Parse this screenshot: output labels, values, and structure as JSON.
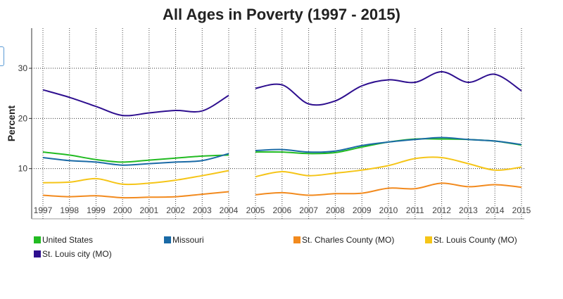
{
  "chart_data": {
    "type": "line",
    "title": "All Ages in Poverty (1997 - 2015)",
    "xlabel": "",
    "ylabel": "Percent",
    "ylim": [
      0,
      38
    ],
    "yticks": [
      10,
      20,
      30
    ],
    "grid": true,
    "legend_position": "bottom",
    "x": [
      "1997",
      "1998",
      "1999",
      "2000",
      "2001",
      "2002",
      "2003",
      "2004",
      "2005",
      "2006",
      "2007",
      "2008",
      "2009",
      "2010",
      "2011",
      "2012",
      "2013",
      "2014",
      "2015"
    ],
    "series": [
      {
        "name": "United States",
        "color": "#22bb22",
        "values": [
          13.3,
          12.7,
          11.8,
          11.3,
          11.7,
          12.1,
          12.5,
          12.7,
          13.3,
          13.3,
          13.0,
          13.2,
          14.3,
          15.3,
          15.9,
          15.9,
          15.8,
          15.5,
          14.7
        ]
      },
      {
        "name": "Missouri",
        "color": "#1a6aa6",
        "values": [
          12.2,
          11.6,
          11.3,
          10.7,
          11.0,
          11.3,
          11.6,
          13.0,
          13.6,
          13.8,
          13.3,
          13.5,
          14.6,
          15.3,
          15.8,
          16.2,
          15.8,
          15.5,
          14.8
        ]
      },
      {
        "name": "St. Charles County (MO)",
        "color": "#f28a1e",
        "values": [
          4.7,
          4.4,
          4.6,
          4.2,
          4.3,
          4.4,
          4.9,
          5.4,
          4.8,
          5.2,
          4.7,
          5.0,
          5.1,
          6.1,
          6.0,
          7.1,
          6.4,
          6.8,
          6.3
        ]
      },
      {
        "name": "St. Louis County (MO)",
        "color": "#f5c518",
        "values": [
          7.2,
          7.3,
          8.0,
          6.9,
          7.1,
          7.7,
          8.6,
          9.6,
          8.4,
          9.4,
          8.6,
          9.1,
          9.7,
          10.6,
          12.0,
          12.2,
          11.0,
          9.7,
          10.3
        ]
      },
      {
        "name": "St. Louis city (MO)",
        "color": "#2e0f8f",
        "values": [
          25.7,
          24.2,
          22.4,
          20.6,
          21.1,
          21.6,
          21.5,
          24.6,
          26.0,
          26.7,
          22.9,
          23.5,
          26.5,
          27.7,
          27.2,
          29.3,
          27.2,
          28.8,
          25.5
        ]
      }
    ]
  }
}
